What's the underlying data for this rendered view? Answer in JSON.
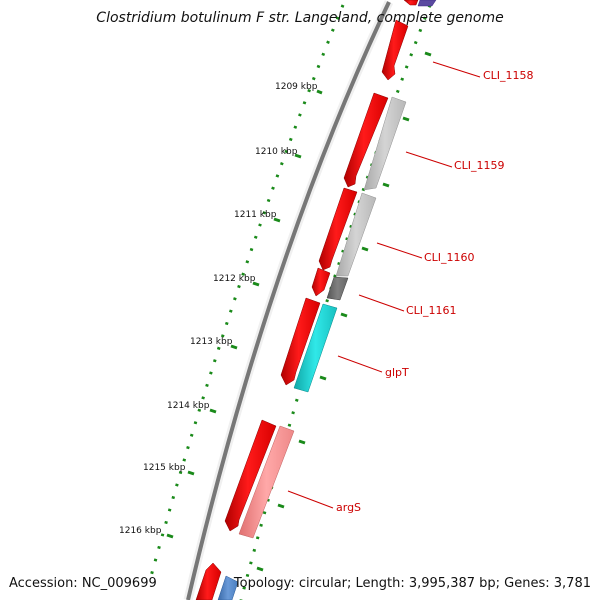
{
  "title": "Clostridium botulinum F str. Langeland, complete genome",
  "footer": {
    "accession": "Accession: NC_009699",
    "summary": "Topology: circular; Length: 3,995,387 bp; Genes: 3,781"
  },
  "ruler": {
    "unit": "kbp",
    "ticks": [
      {
        "kbp": 1209,
        "label": "1209 kbp"
      },
      {
        "kbp": 1210,
        "label": "1210 kbp"
      },
      {
        "kbp": 1211,
        "label": "1211 kbp"
      },
      {
        "kbp": 1212,
        "label": "1212 kbp"
      },
      {
        "kbp": 1213,
        "label": "1213 kbp"
      },
      {
        "kbp": 1214,
        "label": "1214 kbp"
      },
      {
        "kbp": 1215,
        "label": "1215 kbp"
      },
      {
        "kbp": 1216,
        "label": "1216 kbp"
      }
    ]
  },
  "colors": {
    "cds_track": "#ff0000",
    "backbone": "#777777",
    "ruler": "#1a8a1a",
    "label": "#cc0000",
    "gray_feature": "#c8c8c8",
    "dark_gray_feature": "#707070",
    "cyan_feature": "#20d0d0",
    "pink_feature": "#f08a8a",
    "blue_feature": "#4a7fc0",
    "purple_feature": "#5a4aa0"
  },
  "gene_labels": [
    {
      "id": "cli1158",
      "text": "CLI_1158"
    },
    {
      "id": "cli1159",
      "text": "CLI_1159"
    },
    {
      "id": "cli1160",
      "text": "CLI_1160"
    },
    {
      "id": "cli1161",
      "text": "CLI_1161"
    },
    {
      "id": "glpt",
      "text": "glpT"
    },
    {
      "id": "args",
      "text": "argS"
    }
  ]
}
